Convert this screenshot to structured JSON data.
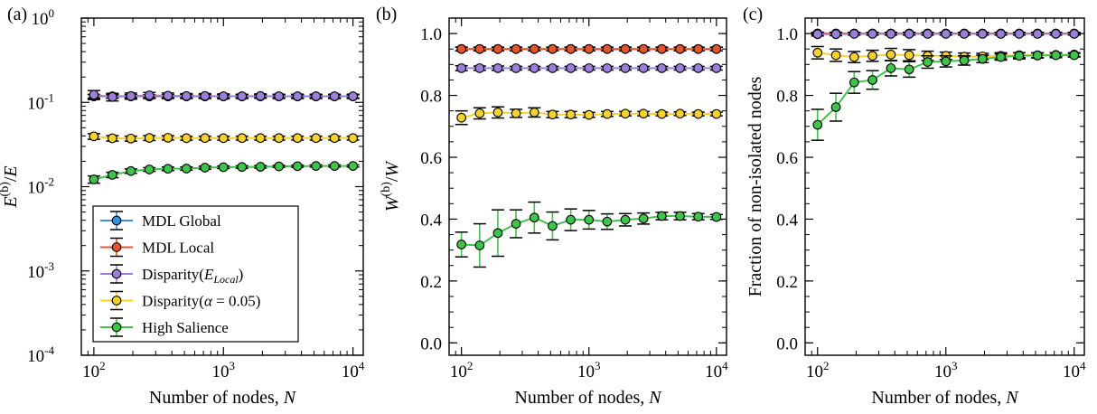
{
  "colors": {
    "MDL Global": "#3a8fde",
    "MDL Local": "#e8542a",
    "Disparity(E_Local)": "#9b7fd9",
    "Disparity(alpha)": "#f5d22b",
    "High Salience": "#3fc44b"
  },
  "chart_data": [
    {
      "panel": "(a)",
      "type": "line",
      "xscale": "log",
      "yscale": "log",
      "xlim": [
        80,
        12000
      ],
      "ylim": [
        0.0001,
        1
      ],
      "xticks": [
        100,
        1000,
        10000
      ],
      "xticklabels": [
        [
          "10",
          "2"
        ],
        [
          "10",
          "3"
        ],
        [
          "10",
          "4"
        ]
      ],
      "yticks": [
        0.0001,
        0.001,
        0.01,
        0.1,
        1
      ],
      "yticklabels": [
        [
          "10",
          "-4"
        ],
        [
          "10",
          "-3"
        ],
        [
          "10",
          "-2"
        ],
        [
          "10",
          "-1"
        ],
        [
          "10",
          "0"
        ]
      ],
      "xlabel": "Number of nodes, N",
      "ylabel": "E(b)/E",
      "x": [
        100,
        139,
        193,
        268,
        373,
        518,
        720,
        1000,
        1390,
        1930,
        2680,
        3730,
        5180,
        7200,
        10000
      ],
      "series": [
        {
          "name": "MDL Global",
          "values": [
            0.118,
            0.118,
            0.118,
            0.118,
            0.118,
            0.118,
            0.118,
            0.118,
            0.118,
            0.118,
            0.118,
            0.118,
            0.118,
            0.118,
            0.118
          ],
          "err": [
            0.006,
            0.006,
            0.005,
            0.005,
            0.005,
            0.005,
            0.005,
            0.005,
            0.005,
            0.005,
            0.005,
            0.005,
            0.005,
            0.005,
            0.005
          ]
        },
        {
          "name": "MDL Local",
          "values": [
            0.118,
            0.118,
            0.118,
            0.118,
            0.118,
            0.118,
            0.118,
            0.118,
            0.118,
            0.118,
            0.118,
            0.118,
            0.118,
            0.118,
            0.118
          ],
          "err": [
            0.006,
            0.006,
            0.005,
            0.005,
            0.005,
            0.005,
            0.005,
            0.005,
            0.005,
            0.005,
            0.005,
            0.005,
            0.005,
            0.005,
            0.005
          ]
        },
        {
          "name": "Disparity(E_Local)",
          "values": [
            0.123,
            0.116,
            0.119,
            0.121,
            0.12,
            0.119,
            0.119,
            0.118,
            0.118,
            0.119,
            0.118,
            0.118,
            0.118,
            0.118,
            0.118
          ],
          "err": [
            0.015,
            0.012,
            0.01,
            0.01,
            0.009,
            0.008,
            0.008,
            0.008,
            0.007,
            0.007,
            0.007,
            0.007,
            0.007,
            0.007,
            0.007
          ]
        },
        {
          "name": "Disparity(α = 0.05)",
          "values": [
            0.0395,
            0.0375,
            0.0372,
            0.0378,
            0.038,
            0.0376,
            0.0377,
            0.0376,
            0.0377,
            0.0377,
            0.0377,
            0.0377,
            0.0377,
            0.0377,
            0.0377
          ],
          "err": [
            0.003,
            0.0028,
            0.0025,
            0.0025,
            0.0022,
            0.002,
            0.002,
            0.002,
            0.002,
            0.002,
            0.002,
            0.002,
            0.002,
            0.002,
            0.002
          ]
        },
        {
          "name": "High Salience",
          "values": [
            0.0122,
            0.0138,
            0.0153,
            0.016,
            0.0163,
            0.0164,
            0.0168,
            0.017,
            0.0171,
            0.0172,
            0.0174,
            0.0175,
            0.0176,
            0.0176,
            0.0176
          ],
          "err": [
            0.0012,
            0.001,
            0.0009,
            0.0008,
            0.0008,
            0.0007,
            0.0007,
            0.0006,
            0.0006,
            0.0006,
            0.0005,
            0.0005,
            0.0005,
            0.0005,
            0.0005
          ]
        }
      ],
      "legend": {
        "placement": "lower-left",
        "entries": [
          {
            "series": "MDL Global",
            "label": "MDL Global"
          },
          {
            "series": "MDL Local",
            "label": "MDL Local"
          },
          {
            "series": "Disparity(E_Local)",
            "label_base": "Disparity(",
            "label_math": "E",
            "label_sub": "Local",
            "label_end": ")"
          },
          {
            "series": "Disparity(α = 0.05)",
            "label_base": "Disparity(",
            "label_math": "α",
            "label_rest": " = 0.05)"
          },
          {
            "series": "High Salience",
            "label": "High Salience"
          }
        ]
      }
    },
    {
      "panel": "(b)",
      "type": "line",
      "xscale": "log",
      "yscale": "linear",
      "xlim": [
        80,
        12000
      ],
      "ylim": [
        -0.04,
        1.05
      ],
      "xticks": [
        100,
        1000,
        10000
      ],
      "xticklabels": [
        [
          "10",
          "2"
        ],
        [
          "10",
          "3"
        ],
        [
          "10",
          "4"
        ]
      ],
      "yticks": [
        0.0,
        0.2,
        0.4,
        0.6,
        0.8,
        1.0
      ],
      "yticklabels": [
        "0.0",
        "0.2",
        "0.4",
        "0.6",
        "0.8",
        "1.0"
      ],
      "xlabel": "Number of nodes, N",
      "ylabel": "W(b)/W",
      "x": [
        100,
        139,
        193,
        268,
        373,
        518,
        720,
        1000,
        1390,
        1930,
        2680,
        3730,
        5180,
        7200,
        10000
      ],
      "series": [
        {
          "name": "MDL Global",
          "values": [
            0.95,
            0.95,
            0.95,
            0.95,
            0.95,
            0.95,
            0.95,
            0.95,
            0.95,
            0.95,
            0.95,
            0.95,
            0.95,
            0.95,
            0.95
          ],
          "err": [
            0.006,
            0.006,
            0.006,
            0.006,
            0.006,
            0.006,
            0.006,
            0.006,
            0.006,
            0.006,
            0.006,
            0.006,
            0.006,
            0.006,
            0.006
          ]
        },
        {
          "name": "MDL Local",
          "values": [
            0.95,
            0.95,
            0.95,
            0.95,
            0.95,
            0.95,
            0.95,
            0.95,
            0.95,
            0.95,
            0.95,
            0.95,
            0.95,
            0.95,
            0.95
          ],
          "err": [
            0.006,
            0.006,
            0.006,
            0.006,
            0.006,
            0.006,
            0.006,
            0.006,
            0.006,
            0.006,
            0.006,
            0.006,
            0.006,
            0.006,
            0.006
          ]
        },
        {
          "name": "Disparity(E_Local)",
          "values": [
            0.888,
            0.888,
            0.888,
            0.888,
            0.888,
            0.888,
            0.888,
            0.888,
            0.888,
            0.888,
            0.888,
            0.888,
            0.888,
            0.888,
            0.888
          ],
          "err": [
            0.008,
            0.007,
            0.007,
            0.006,
            0.006,
            0.006,
            0.006,
            0.006,
            0.006,
            0.006,
            0.006,
            0.006,
            0.006,
            0.006,
            0.006
          ]
        },
        {
          "name": "Disparity(α = 0.05)",
          "values": [
            0.728,
            0.742,
            0.745,
            0.742,
            0.745,
            0.738,
            0.738,
            0.737,
            0.74,
            0.741,
            0.741,
            0.74,
            0.741,
            0.74,
            0.74
          ],
          "err": [
            0.022,
            0.018,
            0.018,
            0.013,
            0.015,
            0.01,
            0.01,
            0.008,
            0.008,
            0.007,
            0.007,
            0.006,
            0.006,
            0.006,
            0.006
          ]
        },
        {
          "name": "High Salience",
          "values": [
            0.318,
            0.315,
            0.355,
            0.385,
            0.405,
            0.378,
            0.398,
            0.398,
            0.392,
            0.398,
            0.402,
            0.41,
            0.41,
            0.408,
            0.407
          ],
          "err": [
            0.04,
            0.07,
            0.075,
            0.045,
            0.05,
            0.045,
            0.035,
            0.03,
            0.025,
            0.02,
            0.018,
            0.012,
            0.012,
            0.01,
            0.008
          ]
        }
      ]
    },
    {
      "panel": "(c)",
      "type": "line",
      "xscale": "log",
      "yscale": "linear",
      "xlim": [
        80,
        12000
      ],
      "ylim": [
        -0.04,
        1.05
      ],
      "xticks": [
        100,
        1000,
        10000
      ],
      "xticklabels": [
        [
          "10",
          "2"
        ],
        [
          "10",
          "3"
        ],
        [
          "10",
          "4"
        ]
      ],
      "yticks": [
        0.0,
        0.2,
        0.4,
        0.6,
        0.8,
        1.0
      ],
      "yticklabels": [
        "0.0",
        "0.2",
        "0.4",
        "0.6",
        "0.8",
        "1.0"
      ],
      "xlabel": "Number of nodes, N",
      "ylabel": "Fraction of non-isolated nodes",
      "x": [
        100,
        139,
        193,
        268,
        373,
        518,
        720,
        1000,
        1390,
        1930,
        2680,
        3730,
        5180,
        7200,
        10000
      ],
      "series": [
        {
          "name": "MDL Global",
          "values": [
            1,
            1,
            1,
            1,
            1,
            1,
            1,
            1,
            1,
            1,
            1,
            1,
            1,
            1,
            1
          ],
          "err": [
            0.004,
            0.004,
            0.004,
            0.004,
            0.004,
            0.004,
            0.004,
            0.004,
            0.004,
            0.004,
            0.004,
            0.004,
            0.004,
            0.004,
            0.004
          ]
        },
        {
          "name": "MDL Local",
          "values": [
            1,
            1,
            1,
            1,
            1,
            1,
            1,
            1,
            1,
            1,
            1,
            1,
            1,
            1,
            1
          ],
          "err": [
            0.004,
            0.004,
            0.004,
            0.004,
            0.004,
            0.004,
            0.004,
            0.004,
            0.004,
            0.004,
            0.004,
            0.004,
            0.004,
            0.004,
            0.004
          ]
        },
        {
          "name": "Disparity(E_Local)",
          "values": [
            0.998,
            0.998,
            0.999,
            0.999,
            0.999,
            0.999,
            0.999,
            0.999,
            0.999,
            0.999,
            0.999,
            0.999,
            0.999,
            0.999,
            0.999
          ],
          "err": [
            0.006,
            0.005,
            0.004,
            0.004,
            0.004,
            0.004,
            0.004,
            0.004,
            0.004,
            0.004,
            0.004,
            0.004,
            0.004,
            0.004,
            0.004
          ]
        },
        {
          "name": "Disparity(α = 0.05)",
          "values": [
            0.938,
            0.93,
            0.924,
            0.928,
            0.932,
            0.93,
            0.928,
            0.928,
            0.925,
            0.926,
            0.928,
            0.93,
            0.93,
            0.931,
            0.932
          ],
          "err": [
            0.02,
            0.02,
            0.018,
            0.018,
            0.02,
            0.018,
            0.015,
            0.012,
            0.012,
            0.01,
            0.01,
            0.008,
            0.008,
            0.006,
            0.006
          ]
        },
        {
          "name": "High Salience",
          "values": [
            0.705,
            0.762,
            0.842,
            0.85,
            0.888,
            0.884,
            0.908,
            0.91,
            0.913,
            0.918,
            0.924,
            0.928,
            0.929,
            0.93,
            0.93
          ],
          "err": [
            0.05,
            0.045,
            0.035,
            0.03,
            0.025,
            0.025,
            0.02,
            0.018,
            0.015,
            0.012,
            0.01,
            0.01,
            0.008,
            0.008,
            0.006
          ]
        }
      ]
    }
  ]
}
